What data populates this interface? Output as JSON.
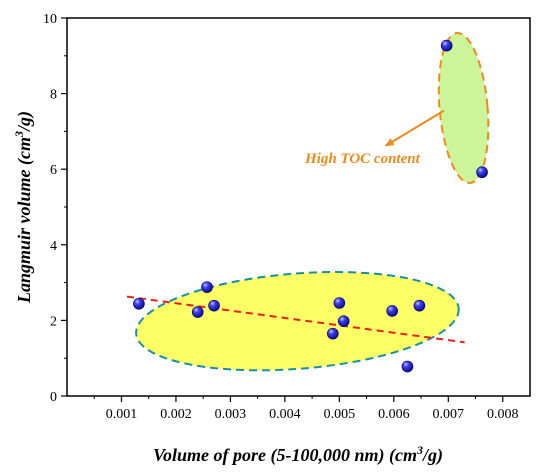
{
  "chart_data": {
    "type": "scatter",
    "title": "",
    "xlabel": "Volume of  pore (5-100,000 nm) (cm",
    "xlabel_sup": "3",
    "xlabel_tail": "/g)",
    "ylabel": "Langmuir volume (cm",
    "ylabel_sup": "3",
    "ylabel_tail": "/g)",
    "xlim": [
      0.0,
      0.0085
    ],
    "ylim": [
      0,
      10
    ],
    "x_ticks": [
      0.001,
      0.002,
      0.003,
      0.004,
      0.005,
      0.006,
      0.007,
      0.008
    ],
    "x_tick_labels": [
      "0.001",
      "0.002",
      "0.003",
      "0.004",
      "0.005",
      "0.006",
      "0.007",
      "0.008"
    ],
    "y_ticks": [
      0,
      2,
      4,
      6,
      8,
      10
    ],
    "y_tick_labels": [
      "0",
      "2",
      "4",
      "6",
      "8",
      "10"
    ],
    "grid": false,
    "series": [
      {
        "points": [
          {
            "x": 0.00132,
            "y": 2.44
          },
          {
            "x": 0.0024,
            "y": 2.22
          },
          {
            "x": 0.00257,
            "y": 2.88
          },
          {
            "x": 0.0027,
            "y": 2.39
          },
          {
            "x": 0.00488,
            "y": 1.65
          },
          {
            "x": 0.005,
            "y": 2.46
          },
          {
            "x": 0.00508,
            "y": 1.98
          },
          {
            "x": 0.00597,
            "y": 2.25
          },
          {
            "x": 0.00625,
            "y": 0.78
          },
          {
            "x": 0.00647,
            "y": 2.39
          },
          {
            "x": 0.00697,
            "y": 9.27
          },
          {
            "x": 0.00762,
            "y": 5.92
          }
        ],
        "color": "#1f1fd6"
      }
    ],
    "trendline": {
      "x": [
        0.0011,
        0.0073
      ],
      "y": [
        2.63,
        1.42
      ],
      "color": "#e8201a"
    },
    "regions": [
      {
        "cx": 0.00423,
        "cy": 1.98,
        "rx": 0.00297,
        "ry": 1.26,
        "rotation_deg": -4.5,
        "fill": "#ffff66",
        "stroke": "#1a8fa0"
      },
      {
        "cx": 0.00728,
        "cy": 7.62,
        "rx": 0.00044,
        "ry": 1.99,
        "rotation_deg": -5,
        "fill": "#ccf59a",
        "stroke": "#ee8a1a"
      }
    ],
    "annotation": {
      "text": "High TOC  content",
      "color": "#ee8a1a",
      "arrow_to": {
        "x": 0.00585,
        "y": 6.62
      },
      "arrow_from": {
        "x": 0.00692,
        "y": 7.55
      }
    }
  }
}
